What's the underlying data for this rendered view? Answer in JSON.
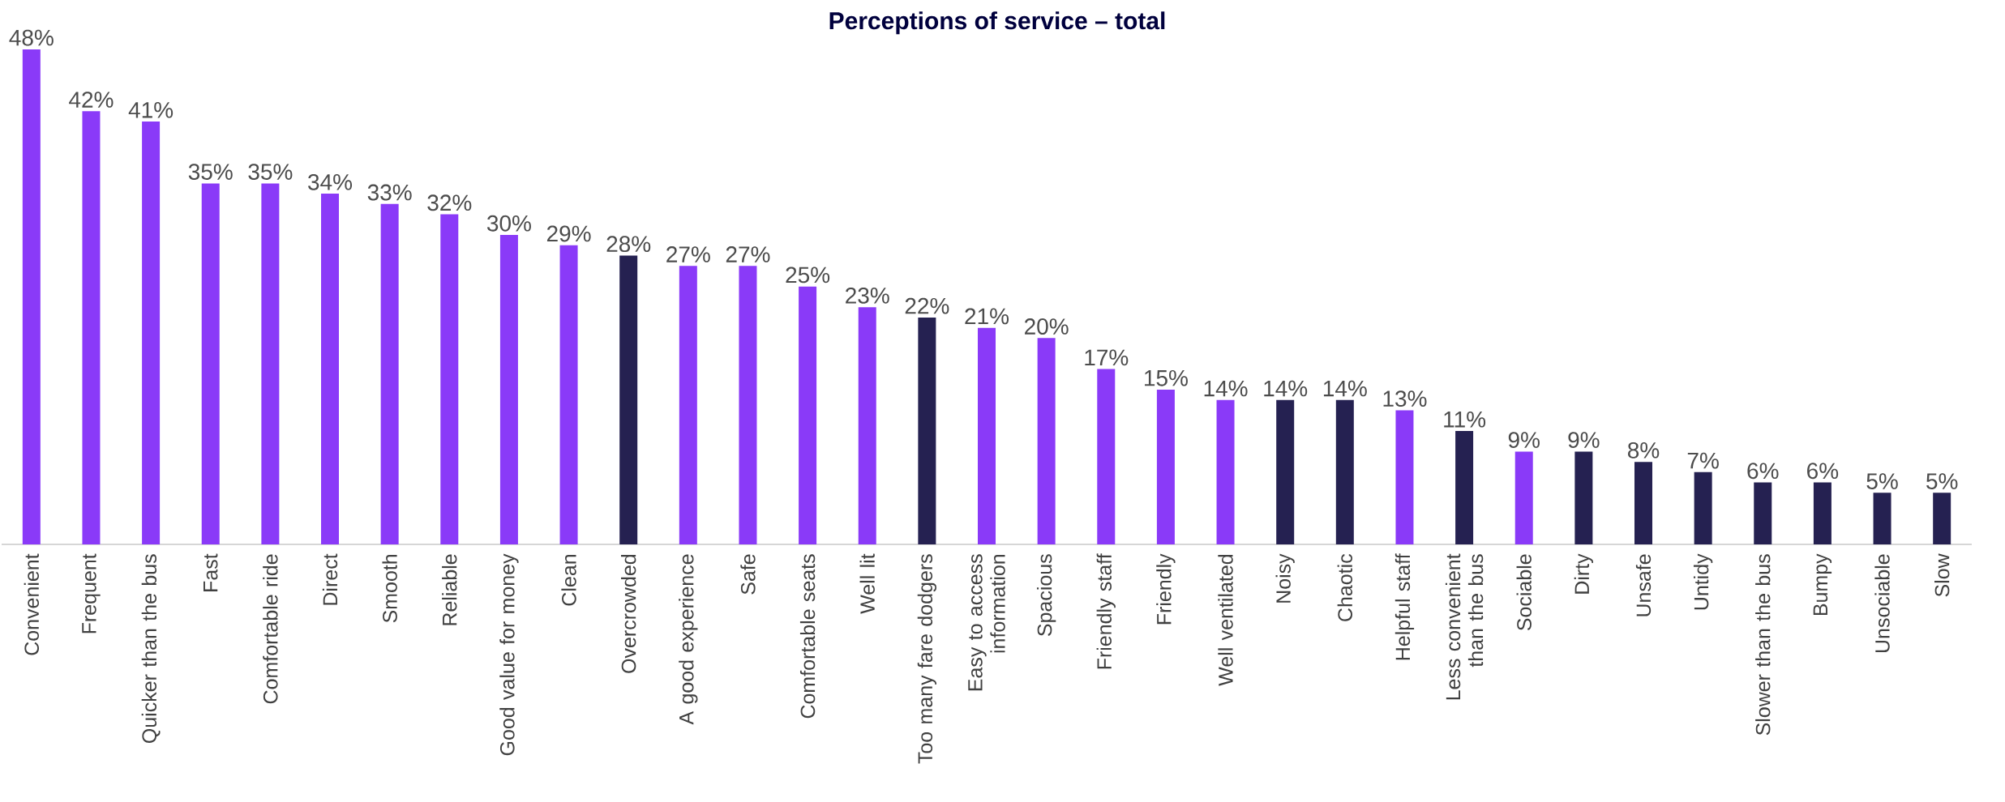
{
  "chart_data": {
    "type": "bar",
    "title": "Perceptions of service – total",
    "categories": [
      "Convenient",
      "Frequent",
      "Quicker than the bus",
      "Fast",
      "Comfortable ride",
      "Direct",
      "Smooth",
      "Reliable",
      "Good value for money",
      "Clean",
      "Overcrowded",
      "A good experience",
      "Safe",
      "Comfortable seats",
      "Well lit",
      "Too many fare dodgers",
      "Easy to access information",
      "Spacious",
      "Friendly staff",
      "Friendly",
      "Well ventilated",
      "Noisy",
      "Chaotic",
      "Helpful staff",
      "Less convenient than the bus",
      "Sociable",
      "Dirty",
      "Unsafe",
      "Untidy",
      "Slower than the bus",
      "Bumpy",
      "Unsociable",
      "Slow"
    ],
    "values": [
      48,
      42,
      41,
      35,
      35,
      34,
      33,
      32,
      30,
      29,
      28,
      27,
      27,
      25,
      23,
      22,
      21,
      20,
      17,
      15,
      14,
      14,
      14,
      13,
      11,
      9,
      9,
      8,
      7,
      6,
      6,
      5,
      5
    ],
    "value_labels": [
      "48%",
      "42%",
      "41%",
      "35%",
      "35%",
      "34%",
      "33%",
      "32%",
      "30%",
      "29%",
      "28%",
      "27%",
      "27%",
      "25%",
      "23%",
      "22%",
      "21%",
      "20%",
      "17%",
      "15%",
      "14%",
      "14%",
      "14%",
      "13%",
      "11%",
      "9%",
      "9%",
      "8%",
      "7%",
      "6%",
      "6%",
      "5%",
      "5%"
    ],
    "colors": [
      "#8a3af8",
      "#8a3af8",
      "#8a3af8",
      "#8a3af8",
      "#8a3af8",
      "#8a3af8",
      "#8a3af8",
      "#8a3af8",
      "#8a3af8",
      "#8a3af8",
      "#252151",
      "#8a3af8",
      "#8a3af8",
      "#8a3af8",
      "#8a3af8",
      "#252151",
      "#8a3af8",
      "#8a3af8",
      "#8a3af8",
      "#8a3af8",
      "#8a3af8",
      "#252151",
      "#252151",
      "#8a3af8",
      "#252151",
      "#8a3af8",
      "#252151",
      "#252151",
      "#252151",
      "#252151",
      "#252151",
      "#252151",
      "#252151"
    ],
    "tick_labels": "x"
  }
}
